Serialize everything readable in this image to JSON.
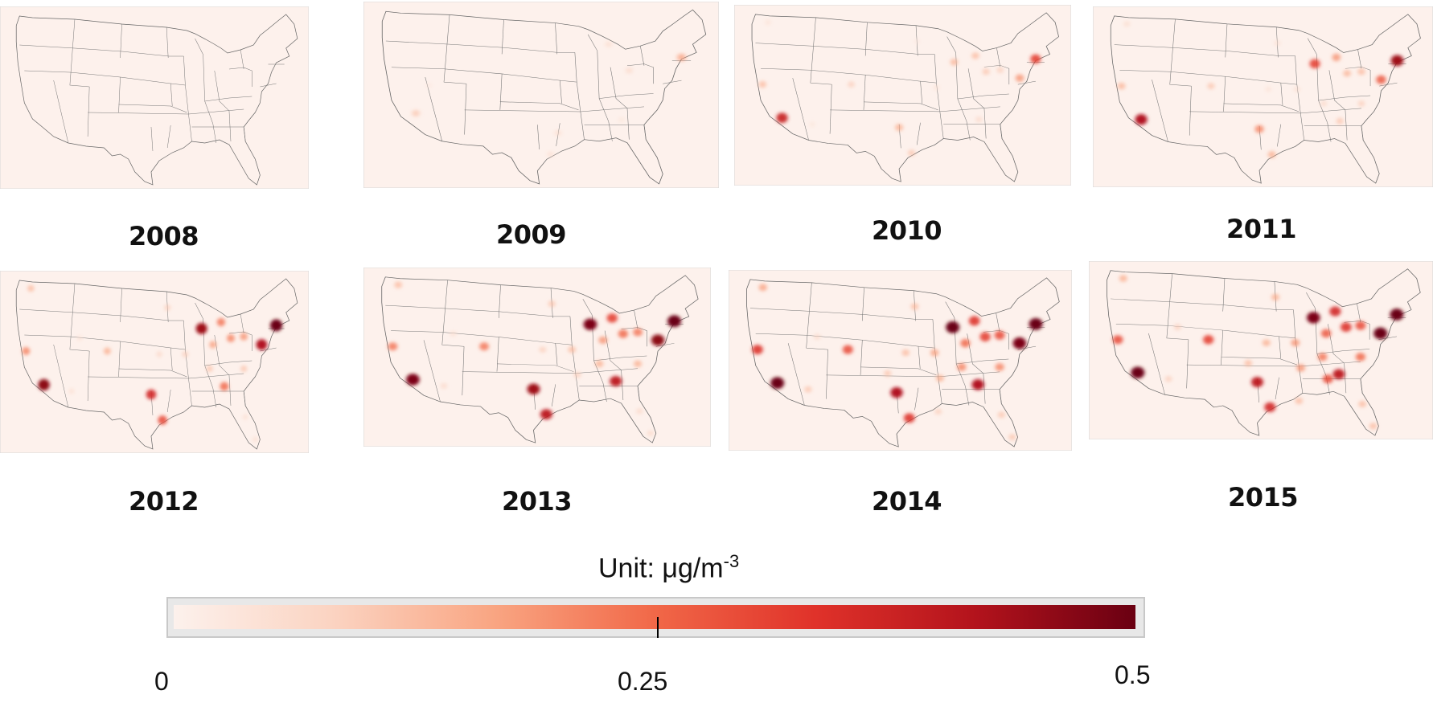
{
  "unit_label": "Unit: μg/m",
  "unit_superscript": "-3",
  "colorbar": {
    "min_label": "0",
    "mid_label": "0.25",
    "max_label": "0.5",
    "color_stops": [
      "#fcf1ec",
      "#fbd3c1",
      "#f9a582",
      "#f16848",
      "#e0322a",
      "#b3131c",
      "#6a0012"
    ]
  },
  "map_background": "#fdf1ec",
  "panels": [
    {
      "year": "2008",
      "hotspots": []
    },
    {
      "year": "2009",
      "hotspots": [
        {
          "site": "ca-south",
          "v": 0.12
        },
        {
          "site": "nyc",
          "v": 0.18
        },
        {
          "site": "ohio",
          "v": 0.08
        },
        {
          "site": "michigan",
          "v": 0.07
        },
        {
          "site": "texas-east",
          "v": 0.07
        },
        {
          "site": "houston",
          "v": 0.06
        },
        {
          "site": "atlanta",
          "v": 0.04
        },
        {
          "site": "nevada",
          "v": 0.03
        }
      ]
    },
    {
      "year": "2010",
      "hotspots": [
        {
          "site": "seattle",
          "v": 0.05
        },
        {
          "site": "sf",
          "v": 0.14
        },
        {
          "site": "la",
          "v": 0.38
        },
        {
          "site": "phoenix",
          "v": 0.04
        },
        {
          "site": "denver",
          "v": 0.1
        },
        {
          "site": "dallas",
          "v": 0.16
        },
        {
          "site": "houston",
          "v": 0.12
        },
        {
          "site": "chicago",
          "v": 0.15
        },
        {
          "site": "detroit",
          "v": 0.14
        },
        {
          "site": "ohio",
          "v": 0.12
        },
        {
          "site": "nyc",
          "v": 0.32
        },
        {
          "site": "dc",
          "v": 0.2
        },
        {
          "site": "pittsburgh",
          "v": 0.1
        },
        {
          "site": "atlanta",
          "v": 0.08
        },
        {
          "site": "stlouis",
          "v": 0.05
        },
        {
          "site": "minneapolis",
          "v": 0.03
        }
      ]
    },
    {
      "year": "2011",
      "hotspots": [
        {
          "site": "seattle",
          "v": 0.07
        },
        {
          "site": "sf",
          "v": 0.15
        },
        {
          "site": "la",
          "v": 0.42
        },
        {
          "site": "denver",
          "v": 0.12
        },
        {
          "site": "dallas",
          "v": 0.22
        },
        {
          "site": "houston",
          "v": 0.16
        },
        {
          "site": "chicago",
          "v": 0.32
        },
        {
          "site": "detroit",
          "v": 0.2
        },
        {
          "site": "ohio",
          "v": 0.15
        },
        {
          "site": "pittsburgh",
          "v": 0.14
        },
        {
          "site": "nyc",
          "v": 0.44
        },
        {
          "site": "dc",
          "v": 0.28
        },
        {
          "site": "atlanta",
          "v": 0.12
        },
        {
          "site": "charlotte",
          "v": 0.1
        },
        {
          "site": "nashville",
          "v": 0.08
        },
        {
          "site": "kc",
          "v": 0.05
        },
        {
          "site": "minneapolis",
          "v": 0.06
        },
        {
          "site": "stlouis",
          "v": 0.06
        }
      ]
    },
    {
      "year": "2012",
      "hotspots": [
        {
          "site": "seattle",
          "v": 0.14
        },
        {
          "site": "sf",
          "v": 0.22
        },
        {
          "site": "la",
          "v": 0.46
        },
        {
          "site": "phoenix",
          "v": 0.06
        },
        {
          "site": "denver",
          "v": 0.16
        },
        {
          "site": "dallas",
          "v": 0.36
        },
        {
          "site": "houston",
          "v": 0.3
        },
        {
          "site": "chicago",
          "v": 0.44
        },
        {
          "site": "detroit",
          "v": 0.24
        },
        {
          "site": "ohio",
          "v": 0.22
        },
        {
          "site": "indianapolis",
          "v": 0.18
        },
        {
          "site": "pittsburgh",
          "v": 0.2
        },
        {
          "site": "nyc",
          "v": 0.5
        },
        {
          "site": "dc",
          "v": 0.42
        },
        {
          "site": "atlanta",
          "v": 0.26
        },
        {
          "site": "charlotte",
          "v": 0.12
        },
        {
          "site": "nashville",
          "v": 0.12
        },
        {
          "site": "stlouis",
          "v": 0.1
        },
        {
          "site": "kc",
          "v": 0.08
        },
        {
          "site": "minneapolis",
          "v": 0.1
        },
        {
          "site": "miami",
          "v": 0.06
        },
        {
          "site": "florida-c",
          "v": 0.06
        },
        {
          "site": "saltlake",
          "v": 0.05
        }
      ]
    },
    {
      "year": "2013",
      "hotspots": [
        {
          "site": "seattle",
          "v": 0.14
        },
        {
          "site": "sf",
          "v": 0.24
        },
        {
          "site": "la",
          "v": 0.48
        },
        {
          "site": "phoenix",
          "v": 0.08
        },
        {
          "site": "denver",
          "v": 0.24
        },
        {
          "site": "dallas",
          "v": 0.44
        },
        {
          "site": "houston",
          "v": 0.4
        },
        {
          "site": "chicago",
          "v": 0.48
        },
        {
          "site": "detroit",
          "v": 0.32
        },
        {
          "site": "ohio",
          "v": 0.26
        },
        {
          "site": "indianapolis",
          "v": 0.2
        },
        {
          "site": "pittsburgh",
          "v": 0.24
        },
        {
          "site": "nyc",
          "v": 0.5
        },
        {
          "site": "dc",
          "v": 0.46
        },
        {
          "site": "atlanta",
          "v": 0.4
        },
        {
          "site": "charlotte",
          "v": 0.16
        },
        {
          "site": "nashville",
          "v": 0.16
        },
        {
          "site": "stlouis",
          "v": 0.14
        },
        {
          "site": "kc",
          "v": 0.1
        },
        {
          "site": "minneapolis",
          "v": 0.12
        },
        {
          "site": "miami",
          "v": 0.08
        },
        {
          "site": "florida-c",
          "v": 0.08
        },
        {
          "site": "saltlake",
          "v": 0.06
        },
        {
          "site": "memphis",
          "v": 0.1
        }
      ]
    },
    {
      "year": "2014",
      "hotspots": [
        {
          "site": "seattle",
          "v": 0.18
        },
        {
          "site": "sf",
          "v": 0.34
        },
        {
          "site": "la",
          "v": 0.5
        },
        {
          "site": "phoenix",
          "v": 0.12
        },
        {
          "site": "denver",
          "v": 0.3
        },
        {
          "site": "dallas",
          "v": 0.42
        },
        {
          "site": "houston",
          "v": 0.34
        },
        {
          "site": "chicago",
          "v": 0.5
        },
        {
          "site": "detroit",
          "v": 0.34
        },
        {
          "site": "ohio",
          "v": 0.32
        },
        {
          "site": "indianapolis",
          "v": 0.26
        },
        {
          "site": "pittsburgh",
          "v": 0.3
        },
        {
          "site": "nyc",
          "v": 0.5
        },
        {
          "site": "dc",
          "v": 0.48
        },
        {
          "site": "atlanta",
          "v": 0.42
        },
        {
          "site": "charlotte",
          "v": 0.22
        },
        {
          "site": "nashville",
          "v": 0.22
        },
        {
          "site": "stlouis",
          "v": 0.18
        },
        {
          "site": "kc",
          "v": 0.14
        },
        {
          "site": "minneapolis",
          "v": 0.14
        },
        {
          "site": "miami",
          "v": 0.12
        },
        {
          "site": "florida-c",
          "v": 0.12
        },
        {
          "site": "saltlake",
          "v": 0.08
        },
        {
          "site": "memphis",
          "v": 0.16
        },
        {
          "site": "neworleans",
          "v": 0.1
        },
        {
          "site": "okc",
          "v": 0.12
        }
      ]
    },
    {
      "year": "2015",
      "hotspots": [
        {
          "site": "seattle",
          "v": 0.16
        },
        {
          "site": "sf",
          "v": 0.3
        },
        {
          "site": "la",
          "v": 0.5
        },
        {
          "site": "phoenix",
          "v": 0.1
        },
        {
          "site": "denver",
          "v": 0.32
        },
        {
          "site": "dallas",
          "v": 0.4
        },
        {
          "site": "houston",
          "v": 0.36
        },
        {
          "site": "chicago",
          "v": 0.48
        },
        {
          "site": "detroit",
          "v": 0.36
        },
        {
          "site": "ohio",
          "v": 0.34
        },
        {
          "site": "indianapolis",
          "v": 0.28
        },
        {
          "site": "pittsburgh",
          "v": 0.3
        },
        {
          "site": "nyc",
          "v": 0.5
        },
        {
          "site": "dc",
          "v": 0.5
        },
        {
          "site": "atlanta",
          "v": 0.4
        },
        {
          "site": "charlotte",
          "v": 0.26
        },
        {
          "site": "nashville",
          "v": 0.24
        },
        {
          "site": "stlouis",
          "v": 0.2
        },
        {
          "site": "kc",
          "v": 0.16
        },
        {
          "site": "minneapolis",
          "v": 0.16
        },
        {
          "site": "miami",
          "v": 0.14
        },
        {
          "site": "florida-c",
          "v": 0.14
        },
        {
          "site": "saltlake",
          "v": 0.1
        },
        {
          "site": "memphis",
          "v": 0.2
        },
        {
          "site": "neworleans",
          "v": 0.14
        },
        {
          "site": "okc",
          "v": 0.14
        },
        {
          "site": "birmingham",
          "v": 0.3
        }
      ]
    }
  ]
}
